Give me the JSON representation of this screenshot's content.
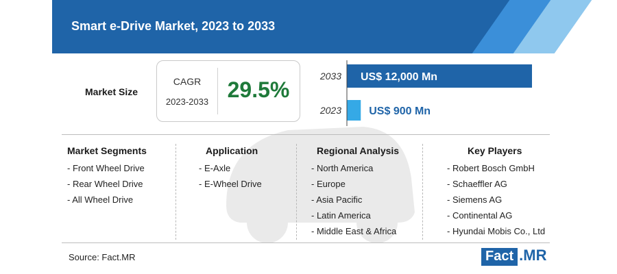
{
  "title": "Smart e-Drive Market, 2023 to 2033",
  "market_size": {
    "label": "Market Size",
    "cagr_label": "CAGR",
    "cagr_period": "2023-2033",
    "cagr_value": "29.5%"
  },
  "chart_data": {
    "type": "bar",
    "orientation": "horizontal",
    "categories": [
      "2033",
      "2023"
    ],
    "values": [
      12000,
      900
    ],
    "value_labels": [
      "US$ 12,000 Mn",
      "US$ 900 Mn"
    ],
    "unit": "US$ Mn",
    "colors": [
      "#1f64a8",
      "#35a9e6"
    ]
  },
  "segments": {
    "market_segments": {
      "title": "Market Segments",
      "items": [
        "- Front Wheel Drive",
        "- Rear Wheel Drive",
        "- All Wheel Drive"
      ]
    },
    "application": {
      "title": "Application",
      "items": [
        "- E-Axle",
        "- E-Wheel Drive"
      ]
    },
    "regional_analysis": {
      "title": "Regional Analysis",
      "items": [
        "- North America",
        "- Europe",
        "- Asia Pacific",
        "- Latin America",
        "- Middle East & Africa"
      ]
    },
    "key_players": {
      "title": "Key Players",
      "items": [
        "- Robert Bosch GmbH",
        "- Schaeffler AG",
        "- Siemens AG",
        "- Continental AG",
        "- Hyundai Mobis Co., Ltd"
      ]
    }
  },
  "source": "Source: Fact.MR",
  "logo": {
    "part1": "Fact",
    "part2": ".MR"
  }
}
